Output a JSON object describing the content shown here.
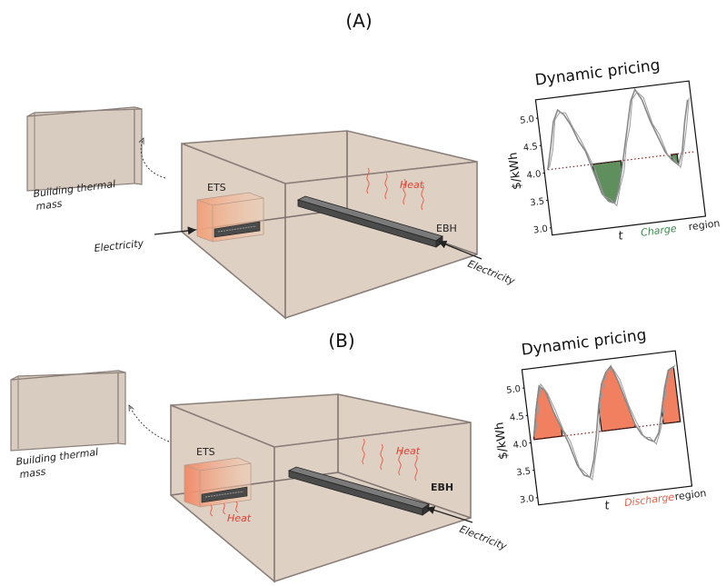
{
  "panels": [
    {
      "id": "A",
      "label": "(A)",
      "wall_label_line1": "Building thermal",
      "wall_label_line2": "mass",
      "ets_label": "ETS",
      "ebh_label": "EBH",
      "heat_label": "Heat",
      "electricity_left": "Electricity",
      "electricity_right": "Electricity",
      "chart_title": "Dynamic pricing",
      "region_word": "Charge",
      "region_suffix": "region",
      "region_color": "#3a8a4a",
      "fill_color": "#5f8f5c",
      "xlabel": "t",
      "ylabel": "$/kWh",
      "ticks": [
        "5.0",
        "4.5",
        "4.0",
        "3.5",
        "3.0"
      ]
    },
    {
      "id": "B",
      "label": "(B)",
      "wall_label_line1": "Building thermal",
      "wall_label_line2": "mass",
      "ets_label": "ETS",
      "ebh_label": "EBH",
      "heat_label": "Heat",
      "heat_label_ets": "Heat",
      "electricity_right": "Electricity",
      "chart_title": "Dynamic pricing",
      "region_word": "Discharge",
      "region_suffix": "region",
      "region_color": "#e8624a",
      "fill_color": "#f08060",
      "xlabel": "t",
      "ylabel": "$/kWh",
      "ticks": [
        "5.0",
        "4.5",
        "4.0",
        "3.5",
        "3.0"
      ]
    }
  ],
  "chart_data": [
    {
      "type": "line",
      "title": "Dynamic pricing",
      "xlabel": "t",
      "ylabel": "$/kWh",
      "ylim": [
        2.9,
        5.3
      ],
      "threshold": 4.05,
      "series": [
        {
          "values": [
            4.05,
            4.45,
            4.9,
            5.1,
            5.0,
            4.8,
            4.5,
            4.3,
            3.9,
            3.5,
            3.35,
            3.3,
            3.55,
            3.9,
            4.3,
            4.7,
            5.1,
            5.3,
            5.1,
            4.7,
            4.4,
            4.1,
            3.95,
            3.85,
            4.1,
            4.6,
            5.0
          ]
        }
      ],
      "highlight": "below_threshold",
      "highlight_label": "Charge region"
    },
    {
      "type": "line",
      "title": "Dynamic pricing",
      "xlabel": "t",
      "ylabel": "$/kWh",
      "ylim": [
        2.9,
        5.3
      ],
      "threshold": 4.05,
      "series": [
        {
          "values": [
            4.1,
            4.6,
            5.0,
            4.9,
            4.5,
            4.2,
            3.9,
            3.5,
            3.3,
            3.25,
            3.55,
            4.0,
            4.5,
            4.9,
            5.1,
            5.2,
            4.9,
            4.5,
            4.1,
            3.9,
            3.8,
            3.75,
            3.9,
            4.3,
            4.7,
            5.0,
            5.05
          ]
        }
      ],
      "highlight": "above_threshold",
      "highlight_label": "Discharge region"
    }
  ]
}
